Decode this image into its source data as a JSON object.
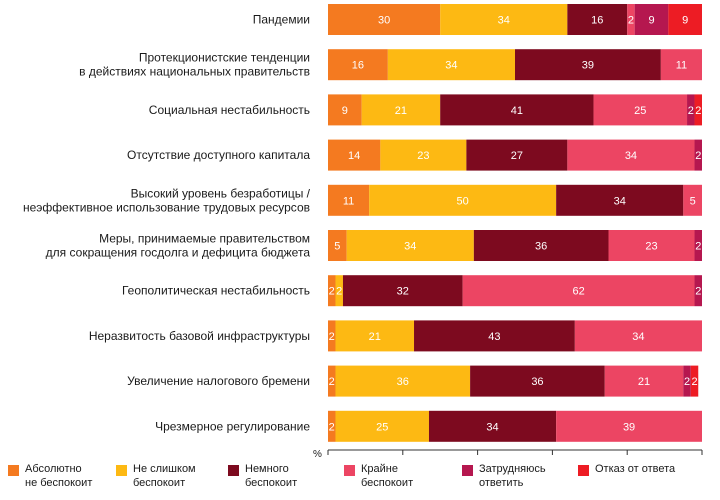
{
  "chart_data": {
    "type": "bar",
    "orientation": "horizontal",
    "stacked": true,
    "unit": "%",
    "xlim": [
      0,
      100
    ],
    "x_ticks": [
      "0",
      "20",
      "40",
      "60",
      "80",
      "100"
    ],
    "categories": [
      "Пандемии",
      "Протекционистские тенденции\nв действиях национальных правительств",
      "Социальная нестабильность",
      "Отсутствие доступного капитала",
      "Высокий уровень безработицы /\nнеэффективное использование трудовых ресурсов",
      "Меры, принимаемые правительством\nдля сокращения госдолга и дефицита бюджета",
      "Геополитическая нестабильность",
      "Неразвитость базовой инфраструктуры",
      "Увеличение налогового бремени",
      "Чрезмерное регулирование"
    ],
    "series": [
      {
        "name": "Абсолютно\nне беспокоит",
        "color": "#f47a20",
        "values": [
          30,
          16,
          9,
          14,
          11,
          5,
          2,
          2,
          2,
          2
        ]
      },
      {
        "name": "Не слишком\nбеспокоит",
        "color": "#fdb913",
        "values": [
          34,
          34,
          21,
          23,
          50,
          34,
          2,
          21,
          36,
          25
        ]
      },
      {
        "name": "Немного\nбеспокоит",
        "color": "#7d0a1f",
        "values": [
          16,
          39,
          41,
          27,
          34,
          36,
          32,
          43,
          36,
          34
        ]
      },
      {
        "name": "Крайне\nбеспокоит",
        "color": "#ec4563",
        "values": [
          2,
          11,
          25,
          34,
          5,
          23,
          62,
          34,
          21,
          39
        ]
      },
      {
        "name": "Затрудняюсь\nответить",
        "color": "#b5174f",
        "values": [
          9,
          0,
          2,
          2,
          0,
          2,
          2,
          0,
          2,
          0
        ]
      },
      {
        "name": "Отказ от ответа",
        "color": "#ed1c24",
        "values": [
          9,
          0,
          2,
          0,
          0,
          0,
          0,
          0,
          2,
          0
        ]
      }
    ],
    "label_colors": [
      "#ffffff",
      "#ffffff",
      "#ffffff",
      "#ffffff",
      "#ffffff",
      "#ffffff"
    ],
    "grid": false,
    "legend_position": "bottom"
  }
}
